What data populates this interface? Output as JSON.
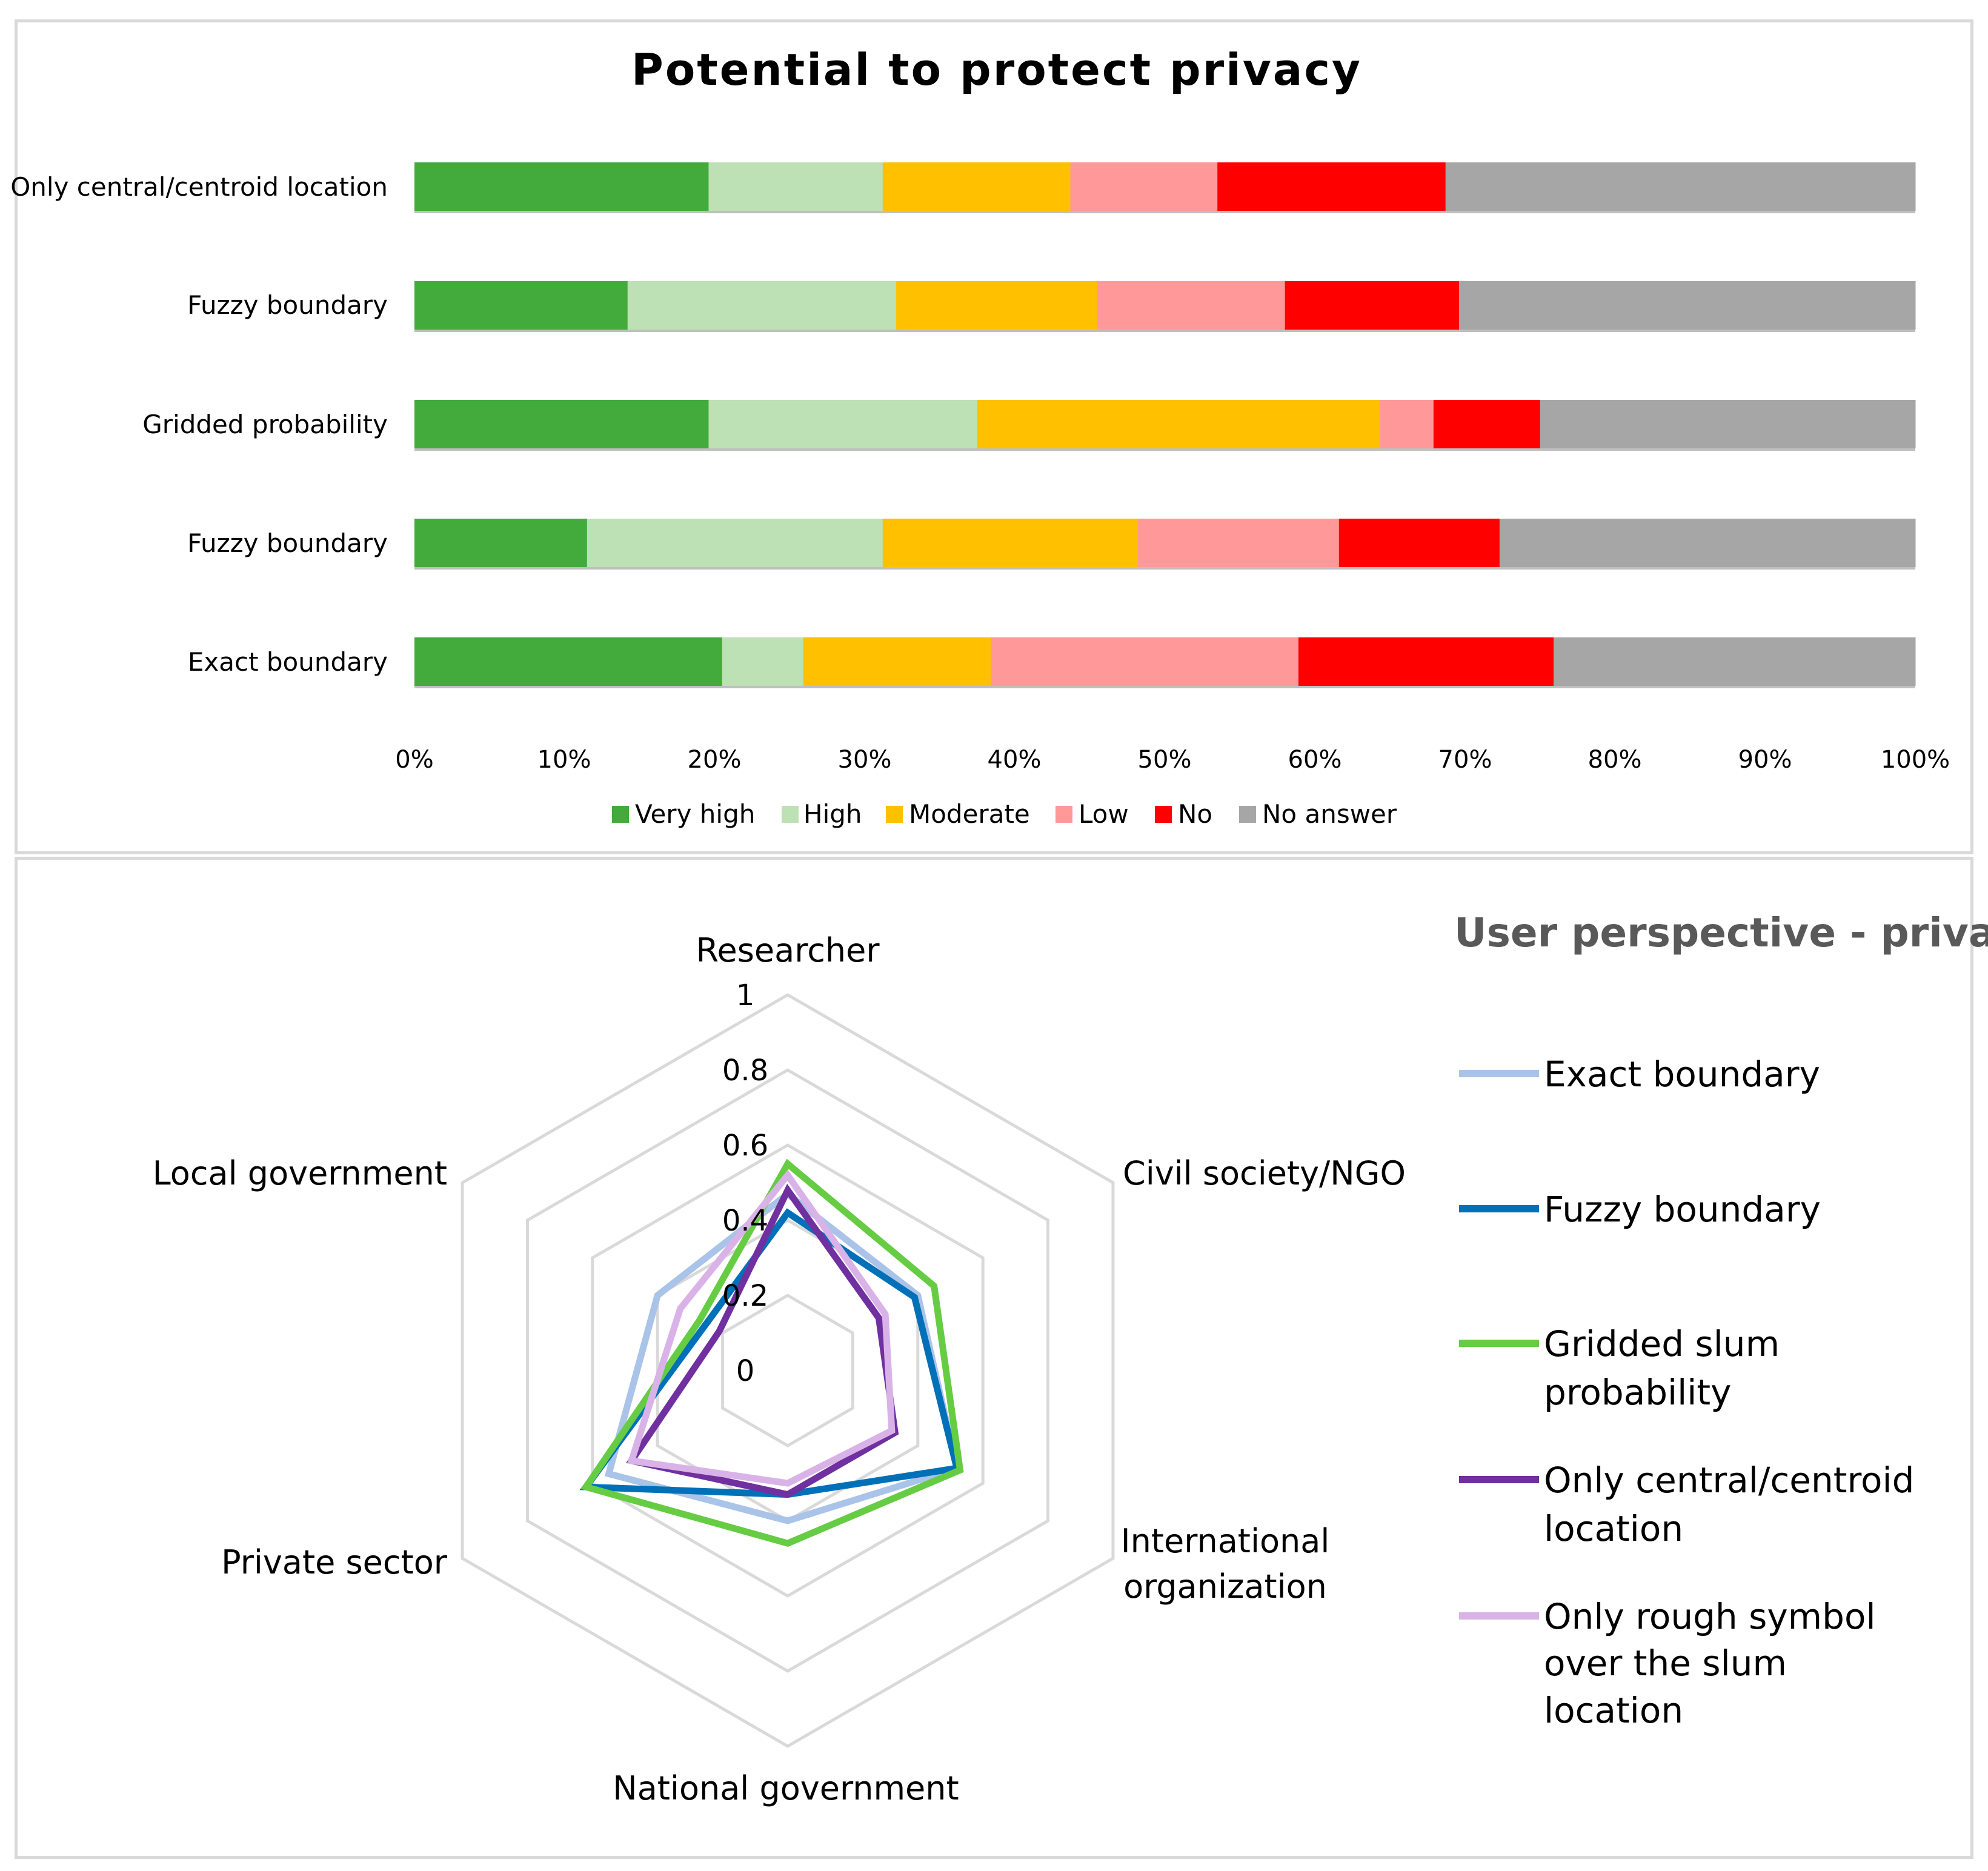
{
  "chart_data": [
    {
      "type": "bar",
      "orientation": "horizontal",
      "stacked": "percent",
      "title": "Potential to protect privacy",
      "categories": [
        "Only central/centroid location",
        "Fuzzy boundary",
        "Gridded  probability",
        "Fuzzy boundary",
        "Exact boundary"
      ],
      "series": [
        {
          "name": "Very high",
          "color": "#43ab3c",
          "values": [
            19.6,
            14.2,
            19.6,
            11.5,
            20.5
          ]
        },
        {
          "name": "High",
          "color": "#bde0b5",
          "values": [
            11.6,
            17.9,
            17.9,
            19.7,
            5.4
          ]
        },
        {
          "name": "Moderate",
          "color": "#ffc000",
          "values": [
            12.5,
            13.4,
            26.8,
            17.0,
            12.5
          ]
        },
        {
          "name": "Low",
          "color": "#ff9999",
          "values": [
            9.8,
            12.5,
            3.6,
            13.4,
            20.5
          ]
        },
        {
          "name": "No",
          "color": "#ff0000",
          "values": [
            15.2,
            11.6,
            7.1,
            10.7,
            17.0
          ]
        },
        {
          "name": "No answer",
          "color": "#a6a6a6",
          "values": [
            31.3,
            30.4,
            25.0,
            27.7,
            24.1
          ]
        }
      ],
      "xlim": [
        0,
        100
      ],
      "xticks": [
        "0%",
        "10%",
        "20%",
        "30%",
        "40%",
        "50%",
        "60%",
        "70%",
        "80%",
        "90%",
        "100%"
      ],
      "legend": "bottom",
      "grid": false
    },
    {
      "type": "radar",
      "title": "User perspective - privacy",
      "axes": [
        "Researcher",
        "Civil society/NGO",
        "International organization",
        "National government",
        "Private sector",
        "Local government"
      ],
      "rticks": [
        "0",
        "0.2",
        "0.4",
        "0.6",
        "0.8",
        "1"
      ],
      "rlim": [
        0,
        1
      ],
      "series": [
        {
          "name": "Exact boundary",
          "color": "#a9c4e8",
          "values": [
            0.47,
            0.4,
            0.52,
            0.4,
            0.55,
            0.4
          ]
        },
        {
          "name": "Fuzzy boundary",
          "color": "#0070b8",
          "values": [
            0.42,
            0.39,
            0.52,
            0.33,
            0.62,
            0.25
          ]
        },
        {
          "name": "Gridded slum probability",
          "color": "#66cc44",
          "values": [
            0.55,
            0.45,
            0.53,
            0.46,
            0.62,
            0.27
          ]
        },
        {
          "name": "Only central/centroid location",
          "color": "#7030a0",
          "values": [
            0.48,
            0.28,
            0.33,
            0.33,
            0.48,
            0.21
          ]
        },
        {
          "name": "Only rough symbol over the slum location",
          "color": "#d9b3e8",
          "values": [
            0.52,
            0.3,
            0.32,
            0.3,
            0.48,
            0.33
          ]
        }
      ],
      "legend": "right"
    }
  ],
  "top": {
    "title": "Potential to protect privacy",
    "categories": [
      "Only central/centroid location",
      "Fuzzy boundary",
      "Gridded  probability",
      "Fuzzy boundary",
      "Exact boundary"
    ],
    "ticks": [
      "0%",
      "10%",
      "20%",
      "30%",
      "40%",
      "50%",
      "60%",
      "70%",
      "80%",
      "90%",
      "100%"
    ],
    "legend": [
      "Very high",
      "High",
      "Moderate",
      "Low",
      "No",
      "No answer"
    ]
  },
  "radar": {
    "title": "User perspective - privacy",
    "axes": [
      "Researcher",
      "Civil society/NGO",
      "International",
      "organization",
      "National government",
      "Private sector",
      "Local government"
    ],
    "rticks": [
      "0",
      "0.2",
      "0.4",
      "0.6",
      "0.8",
      "1"
    ],
    "legend": [
      [
        "Exact boundary"
      ],
      [
        "Fuzzy boundary"
      ],
      [
        "Gridded slum",
        "probability"
      ],
      [
        "Only central/centroid",
        "location"
      ],
      [
        "Only rough symbol",
        "over the slum",
        "location"
      ]
    ]
  }
}
